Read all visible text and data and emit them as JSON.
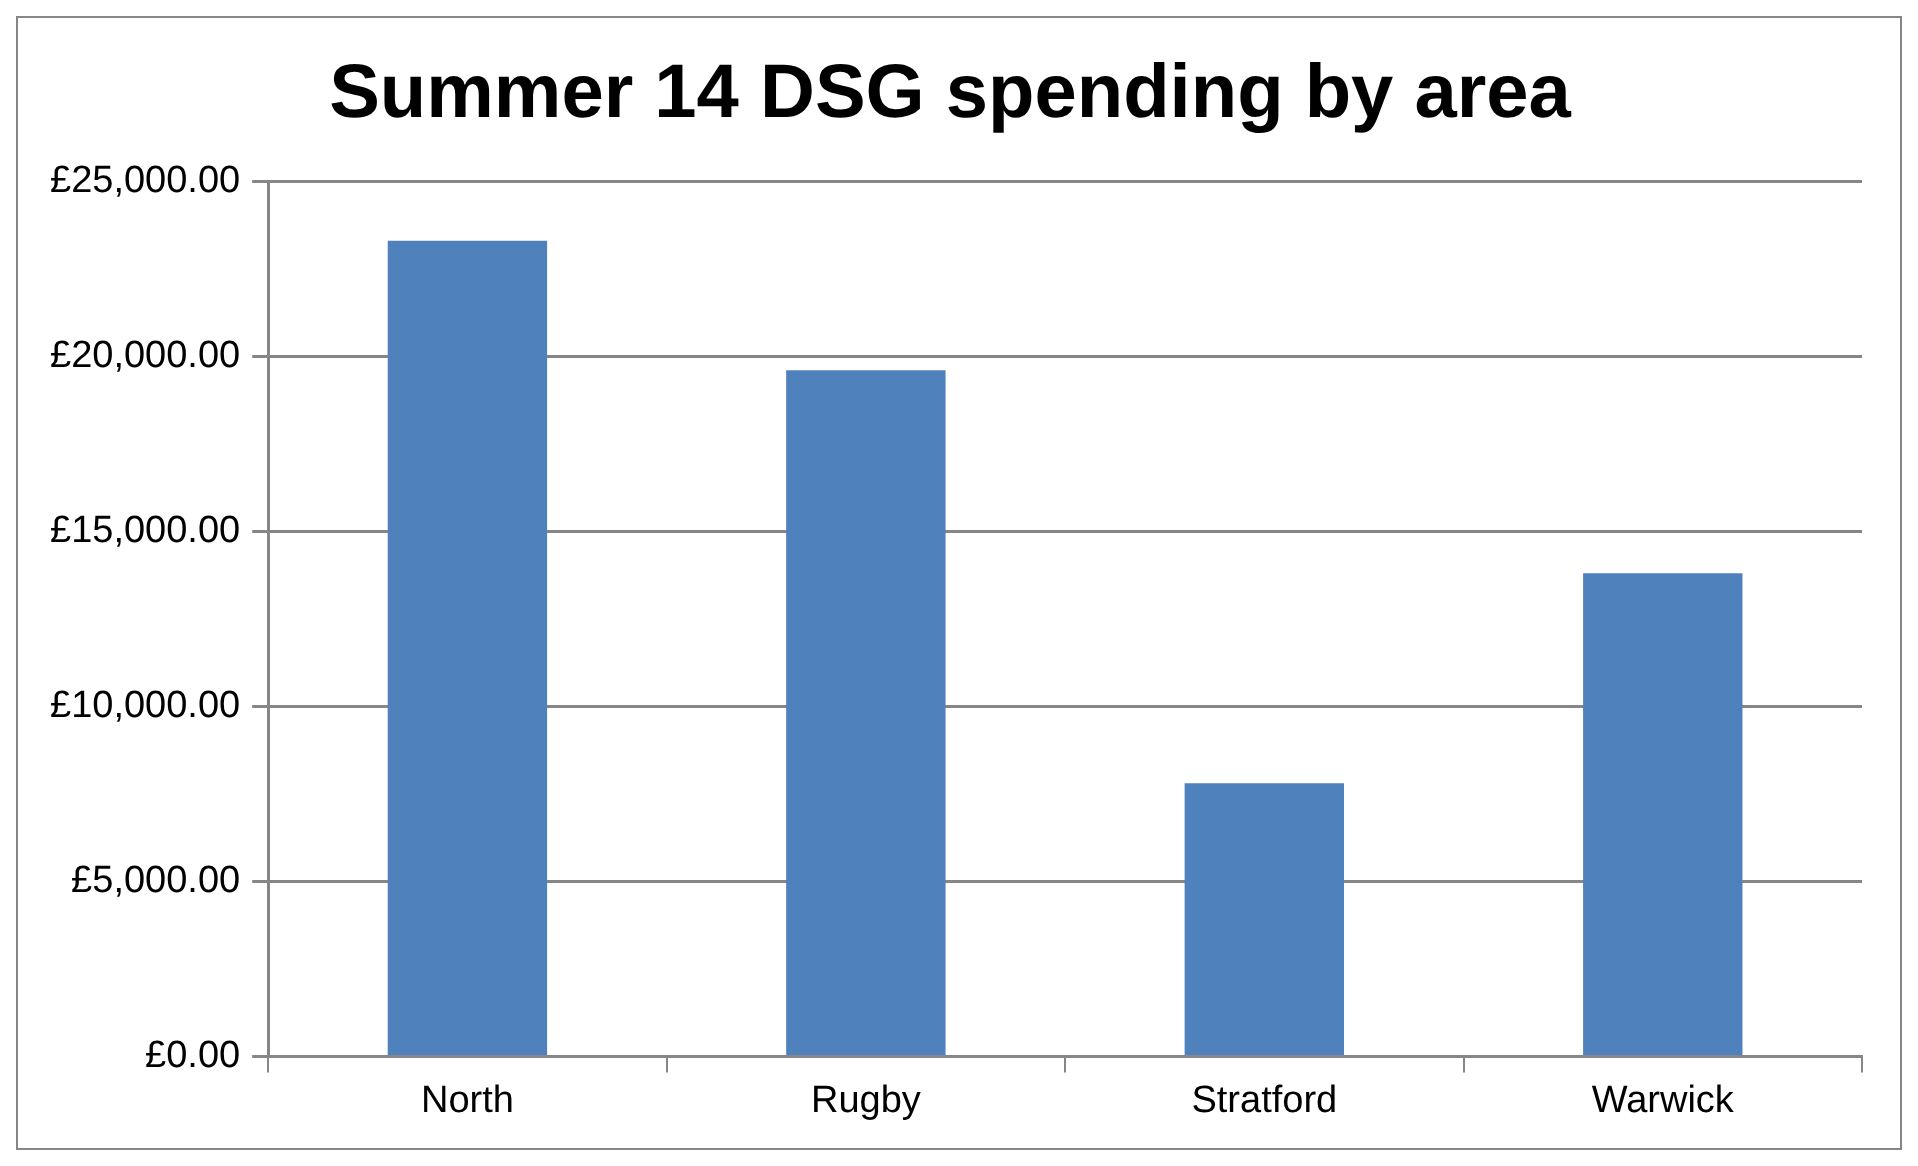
{
  "chart_data": {
    "type": "bar",
    "title": "Summer 14 DSG spending by area",
    "categories": [
      "North",
      "Rugby",
      "Stratford",
      "Warwick"
    ],
    "values": [
      23300,
      19600,
      7800,
      13800
    ],
    "color": "#4f81bd",
    "ylim": [
      0,
      25000
    ],
    "yticks": [
      {
        "value": 0,
        "label": "£0.00"
      },
      {
        "value": 5000,
        "label": "£5,000.00"
      },
      {
        "value": 10000,
        "label": "£10,000.00"
      },
      {
        "value": 15000,
        "label": "£15,000.00"
      },
      {
        "value": 20000,
        "label": "£20,000.00"
      },
      {
        "value": 25000,
        "label": "£25,000.00"
      }
    ],
    "grid": "y",
    "legend": false
  }
}
